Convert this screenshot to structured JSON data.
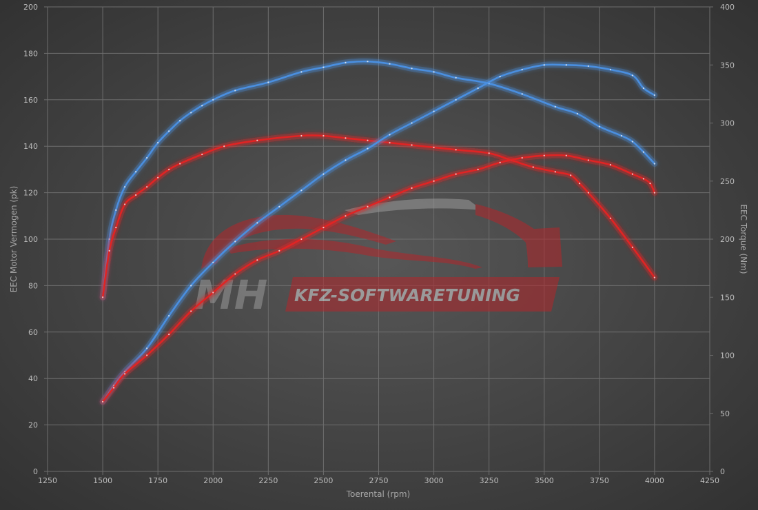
{
  "chart_data": {
    "type": "line",
    "title": "",
    "xlabel": "Toerental (rpm)",
    "ylabel_left": "EEC Motor Vermogen (pk)",
    "ylabel_right": "EEC Torque (Nm)",
    "xlim": [
      1250,
      4250
    ],
    "ylim_left": [
      0,
      200
    ],
    "ylim_right": [
      0,
      400
    ],
    "x_ticks": [
      1250,
      1500,
      1750,
      2000,
      2250,
      2500,
      2750,
      3000,
      3250,
      3500,
      3750,
      4000,
      4250
    ],
    "y_left_ticks": [
      0,
      20,
      40,
      60,
      80,
      100,
      120,
      140,
      160,
      180,
      200
    ],
    "y_right_ticks": [
      0,
      50,
      100,
      150,
      200,
      250,
      300,
      350,
      400
    ],
    "grid": true,
    "legend": "none",
    "colors": {
      "background_center": "#545454",
      "background_edge": "#333333",
      "grid": "#6e6e6e",
      "tuned": "#4a8fe0",
      "stock": "#e02424"
    },
    "series": [
      {
        "id": "torque-tuned",
        "axis": "right",
        "color": "#4a8fe0",
        "points": [
          [
            1500,
            150
          ],
          [
            1530,
            200
          ],
          [
            1560,
            225
          ],
          [
            1600,
            245
          ],
          [
            1650,
            258
          ],
          [
            1700,
            270
          ],
          [
            1750,
            283
          ],
          [
            1800,
            293
          ],
          [
            1850,
            302
          ],
          [
            1900,
            309
          ],
          [
            1950,
            315
          ],
          [
            2000,
            320
          ],
          [
            2100,
            328
          ],
          [
            2250,
            335
          ],
          [
            2400,
            344
          ],
          [
            2500,
            348
          ],
          [
            2600,
            352
          ],
          [
            2700,
            353
          ],
          [
            2800,
            351
          ],
          [
            2900,
            347
          ],
          [
            3000,
            344
          ],
          [
            3100,
            339
          ],
          [
            3250,
            334
          ],
          [
            3400,
            325
          ],
          [
            3550,
            314
          ],
          [
            3650,
            308
          ],
          [
            3750,
            297
          ],
          [
            3850,
            289
          ],
          [
            3900,
            284
          ],
          [
            3950,
            275
          ],
          [
            4000,
            265
          ]
        ]
      },
      {
        "id": "torque-stock",
        "axis": "right",
        "color": "#e02424",
        "points": [
          [
            1500,
            150
          ],
          [
            1530,
            190
          ],
          [
            1560,
            210
          ],
          [
            1600,
            230
          ],
          [
            1650,
            238
          ],
          [
            1700,
            245
          ],
          [
            1750,
            253
          ],
          [
            1800,
            260
          ],
          [
            1850,
            265
          ],
          [
            1950,
            273
          ],
          [
            2050,
            280
          ],
          [
            2200,
            285
          ],
          [
            2400,
            289
          ],
          [
            2500,
            289
          ],
          [
            2600,
            287
          ],
          [
            2700,
            285
          ],
          [
            2800,
            283
          ],
          [
            2900,
            281
          ],
          [
            3000,
            279
          ],
          [
            3100,
            277
          ],
          [
            3250,
            274
          ],
          [
            3350,
            268
          ],
          [
            3450,
            262
          ],
          [
            3550,
            258
          ],
          [
            3620,
            255
          ],
          [
            3660,
            248
          ],
          [
            3700,
            240
          ],
          [
            3800,
            218
          ],
          [
            3900,
            193
          ],
          [
            4000,
            167
          ]
        ]
      },
      {
        "id": "power-tuned",
        "axis": "left",
        "color": "#4a8fe0",
        "points": [
          [
            1500,
            30
          ],
          [
            1550,
            37
          ],
          [
            1600,
            43
          ],
          [
            1700,
            53
          ],
          [
            1800,
            67
          ],
          [
            1900,
            80
          ],
          [
            2000,
            90
          ],
          [
            2100,
            99
          ],
          [
            2200,
            107
          ],
          [
            2300,
            114
          ],
          [
            2400,
            121
          ],
          [
            2500,
            128
          ],
          [
            2600,
            134
          ],
          [
            2700,
            139
          ],
          [
            2800,
            145
          ],
          [
            2900,
            150
          ],
          [
            3000,
            155
          ],
          [
            3100,
            160
          ],
          [
            3200,
            165
          ],
          [
            3300,
            170
          ],
          [
            3400,
            173
          ],
          [
            3500,
            175
          ],
          [
            3600,
            175
          ],
          [
            3700,
            174.5
          ],
          [
            3800,
            173
          ],
          [
            3900,
            170.5
          ],
          [
            3950,
            165
          ],
          [
            4000,
            162
          ]
        ]
      },
      {
        "id": "power-stock",
        "axis": "left",
        "color": "#e02424",
        "points": [
          [
            1500,
            30
          ],
          [
            1550,
            36
          ],
          [
            1600,
            42
          ],
          [
            1700,
            50
          ],
          [
            1800,
            59
          ],
          [
            1900,
            69
          ],
          [
            2000,
            77
          ],
          [
            2100,
            85
          ],
          [
            2200,
            91
          ],
          [
            2300,
            95
          ],
          [
            2400,
            100
          ],
          [
            2500,
            105
          ],
          [
            2600,
            110
          ],
          [
            2700,
            114
          ],
          [
            2800,
            118
          ],
          [
            2900,
            122
          ],
          [
            3000,
            125
          ],
          [
            3100,
            128
          ],
          [
            3200,
            130
          ],
          [
            3300,
            133
          ],
          [
            3400,
            135
          ],
          [
            3500,
            136
          ],
          [
            3600,
            136
          ],
          [
            3700,
            134
          ],
          [
            3800,
            132
          ],
          [
            3900,
            128
          ],
          [
            3950,
            126
          ],
          [
            3980,
            124
          ],
          [
            4000,
            120
          ]
        ]
      }
    ]
  },
  "watermark": {
    "mh": "MH",
    "brand": "KFZ-SOFTWARETUNING"
  }
}
